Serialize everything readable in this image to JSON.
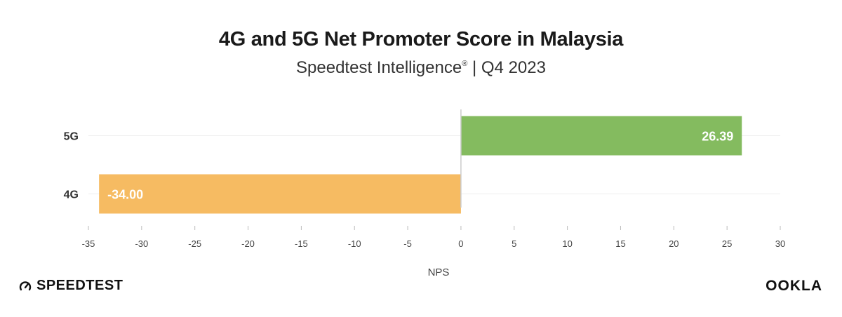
{
  "title": "4G and 5G Net Promoter Score in Malaysia",
  "subtitle": "Speedtest Intelligence",
  "subtitle_mark": "®",
  "subtitle_suffix": "| Q4 2023",
  "brand_left": "SPEEDTEST",
  "brand_right": "OOKLA",
  "colors": {
    "bar_5g": "#84bb5f",
    "bar_4g": "#f6bb62",
    "grid": "#eeeeee",
    "zero_line": "#cccccc",
    "axis_text": "#444444"
  },
  "chart_data": {
    "type": "bar",
    "orientation": "horizontal",
    "categories": [
      "5G",
      "4G"
    ],
    "values": [
      26.39,
      -34.0
    ],
    "data_labels": [
      "26.39",
      "-34.00"
    ],
    "xlabel": "NPS",
    "ylabel": "",
    "xlim": [
      -35,
      30
    ],
    "xticks": [
      -35,
      -30,
      -25,
      -20,
      -15,
      -10,
      -5,
      0,
      5,
      10,
      15,
      20,
      25,
      30
    ],
    "grid": true
  }
}
